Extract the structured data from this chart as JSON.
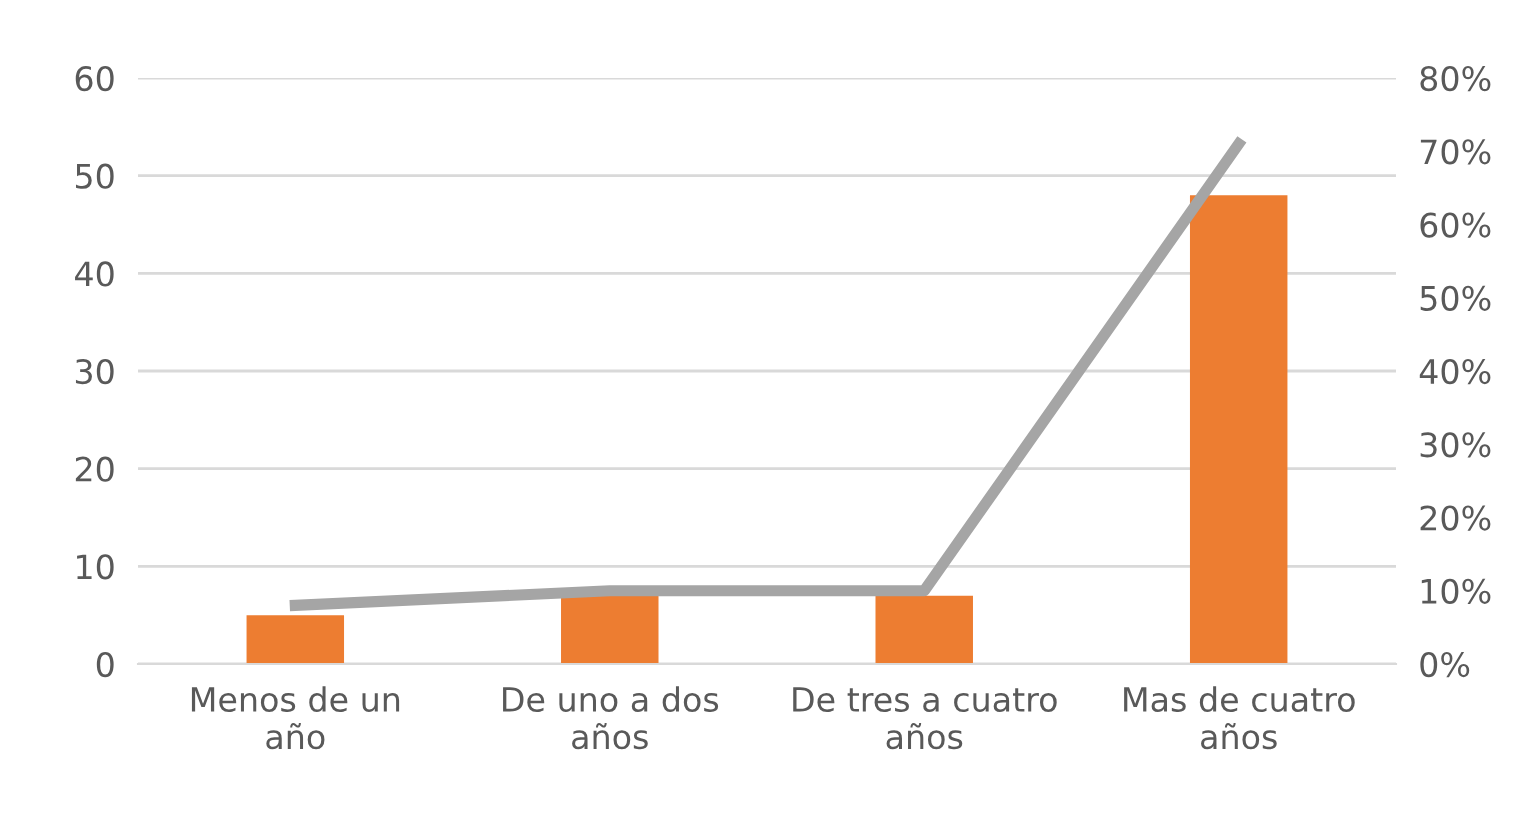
{
  "chart_data": {
    "type": "bar",
    "categories": [
      "Menos de un\naño",
      "De uno a dos\naños",
      "De tres a cuatro\naños",
      "Mas de cuatro\naños"
    ],
    "series": [
      {
        "color": "#ed7d31",
        "values": [
          5,
          7,
          7,
          48
        ]
      },
      {
        "type": "line",
        "axis": "y2",
        "color": "#a5a5a5",
        "values": [
          8,
          10,
          10,
          71
        ]
      }
    ],
    "ylim": [
      0,
      60
    ],
    "yticks": [
      0,
      10,
      20,
      30,
      40,
      50,
      60
    ],
    "y2lim": [
      0,
      80
    ],
    "y2ticks": [
      {
        "value": 0,
        "label": "0%"
      },
      {
        "value": 10,
        "label": "10%"
      },
      {
        "value": 20,
        "label": "20%"
      },
      {
        "value": 30,
        "label": "30%"
      },
      {
        "value": 40,
        "label": "40%"
      },
      {
        "value": 50,
        "label": "50%"
      },
      {
        "value": 60,
        "label": "60%"
      },
      {
        "value": 70,
        "label": "70%"
      },
      {
        "value": 80,
        "label": "80%"
      }
    ],
    "grid": "y",
    "marker": "none",
    "line_style": "solid",
    "legend": false
  }
}
